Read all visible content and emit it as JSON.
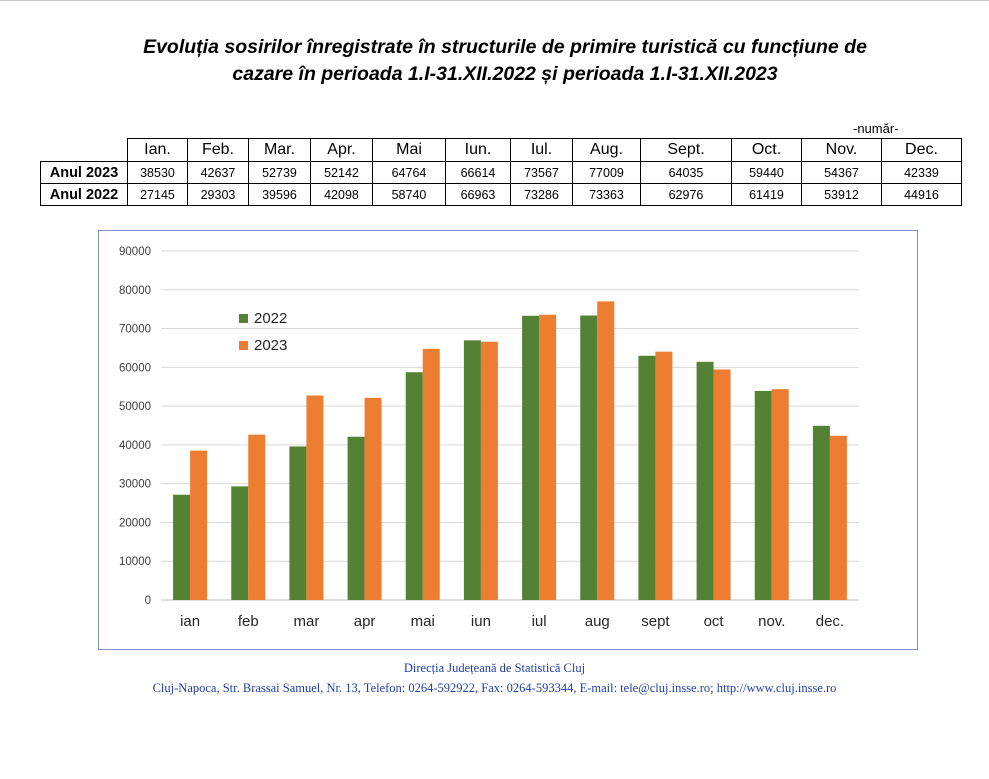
{
  "title_line1": "Evoluția sosirilor înregistrate în structurile de primire turistică cu funcțiune de",
  "title_line2": "cazare în perioada 1.I-31.XII.2022 și perioada 1.I-31.XII.2023",
  "unit_label": "-număr-",
  "table": {
    "months": [
      "Ian.",
      "Feb.",
      "Mar.",
      "Apr.",
      "Mai",
      "Iun.",
      "Iul.",
      "Aug.",
      "Sept.",
      "Oct.",
      "Nov.",
      "Dec."
    ],
    "rows": [
      {
        "label": "Anul 2023",
        "values": [
          "38530",
          "42637",
          "52739",
          "52142",
          "64764",
          "66614",
          "73567",
          "77009",
          "64035",
          "59440",
          "54367",
          "42339"
        ]
      },
      {
        "label": "Anul 2022",
        "values": [
          "27145",
          "29303",
          "39596",
          "42098",
          "58740",
          "66963",
          "73286",
          "73363",
          "62976",
          "61419",
          "53912",
          "44916"
        ]
      }
    ]
  },
  "chart_data": {
    "type": "bar",
    "title": "",
    "categories": [
      "ian",
      "feb",
      "mar",
      "apr",
      "mai",
      "iun",
      "iul",
      "aug",
      "sept",
      "oct",
      "nov.",
      "dec."
    ],
    "series": [
      {
        "name": "2022",
        "color": "#548235",
        "values": [
          27145,
          29303,
          39596,
          42098,
          58740,
          66963,
          73286,
          73363,
          62976,
          61419,
          53912,
          44916
        ]
      },
      {
        "name": "2023",
        "color": "#ed7d31",
        "values": [
          38530,
          42637,
          52739,
          52142,
          64764,
          66614,
          73567,
          77009,
          64035,
          59440,
          54367,
          42339
        ]
      }
    ],
    "yticks": [
      "0",
      "10000",
      "20000",
      "30000",
      "40000",
      "50000",
      "60000",
      "70000",
      "80000",
      "90000"
    ],
    "ylim": [
      0,
      90000
    ],
    "xlabel": "",
    "ylabel": "",
    "legend_position": "top-left",
    "gridlines": true
  },
  "footer": {
    "line1": "Direcția Județeană de Statistică Cluj",
    "line2": "Cluj-Napoca, Str. Brassai Samuel, Nr. 13, Telefon: 0264-592922, Fax: 0264-593344, E-mail: tele@cluj.insse.ro; http://www.cluj.insse.ro"
  }
}
